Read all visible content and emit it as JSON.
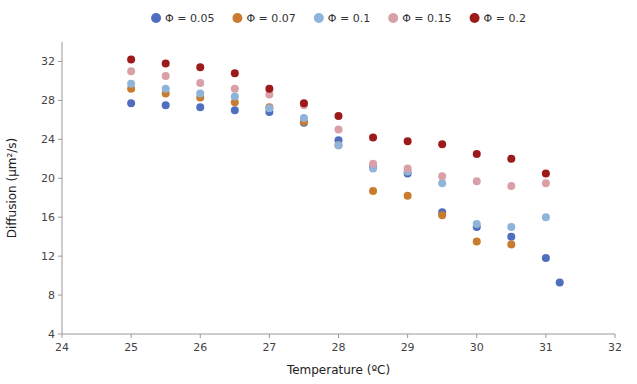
{
  "chart_data": {
    "type": "scatter",
    "xlabel": "Temperature (ºC)",
    "ylabel": "Diffusion (μm²/s)",
    "xlim": [
      24,
      32
    ],
    "ylim": [
      4,
      34
    ],
    "xticks": [
      24,
      25,
      26,
      27,
      28,
      29,
      30,
      31,
      32
    ],
    "yticks": [
      4,
      8,
      12,
      16,
      20,
      24,
      28,
      32
    ],
    "grid": false,
    "legend": "top",
    "series": [
      {
        "name": "Φ = 0.05",
        "color": "#4F6EBD",
        "marker": "circle",
        "x": [
          25.0,
          25.5,
          26.0,
          26.5,
          27.0,
          27.5,
          28.0,
          28.5,
          29.0,
          29.5,
          30.0,
          30.5,
          31.0,
          31.2
        ],
        "values": [
          27.7,
          27.5,
          27.3,
          27.0,
          26.8,
          25.7,
          23.9,
          21.2,
          20.5,
          16.5,
          15.0,
          14.0,
          11.8,
          9.3
        ]
      },
      {
        "name": "Φ = 0.07",
        "color": "#C97B2E",
        "marker": "circle",
        "x": [
          25.0,
          25.5,
          26.0,
          26.5,
          27.0,
          27.5,
          28.0,
          28.5,
          29.0,
          29.5,
          30.0,
          30.5,
          31.0
        ],
        "values": [
          29.2,
          28.7,
          28.3,
          27.8,
          27.3,
          25.8,
          23.4,
          18.7,
          18.2,
          16.2,
          13.5,
          13.2,
          null
        ]
      },
      {
        "name": "Φ = 0.1",
        "color": "#8EB4D9",
        "marker": "circle",
        "x": [
          25.0,
          25.5,
          26.0,
          26.5,
          27.0,
          27.5,
          28.0,
          28.5,
          29.0,
          29.5,
          30.0,
          30.5,
          31.0
        ],
        "values": [
          29.7,
          29.2,
          28.7,
          28.4,
          27.2,
          26.2,
          23.4,
          21.0,
          20.7,
          19.5,
          15.3,
          15.0,
          16.0
        ]
      },
      {
        "name": "Φ = 0.15",
        "color": "#D9A0A8",
        "marker": "circle",
        "x": [
          25.0,
          25.5,
          26.0,
          26.5,
          27.0,
          27.5,
          28.0,
          28.5,
          29.0,
          29.5,
          30.0,
          30.5,
          31.0
        ],
        "values": [
          31.0,
          30.5,
          29.8,
          29.2,
          28.6,
          27.5,
          25.0,
          21.5,
          21.0,
          20.2,
          19.7,
          19.2,
          19.5
        ]
      },
      {
        "name": "Φ = 0.2",
        "color": "#9C1A1A",
        "marker": "circle",
        "x": [
          25.0,
          25.5,
          26.0,
          26.5,
          27.0,
          27.5,
          28.0,
          28.5,
          29.0,
          29.5,
          30.0,
          30.5,
          31.0
        ],
        "values": [
          32.2,
          31.8,
          31.4,
          30.8,
          29.2,
          27.7,
          26.4,
          24.2,
          23.8,
          23.5,
          22.5,
          22.0,
          20.5
        ]
      }
    ]
  }
}
